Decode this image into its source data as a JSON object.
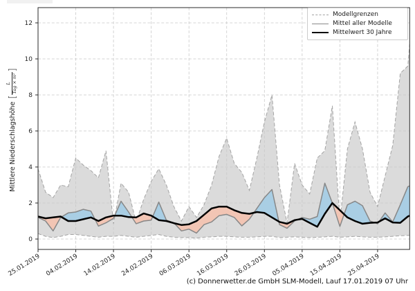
{
  "caption": "(c) Donnerwetter.de GmbH SLM-Modell, Lauf 17.01.2019 07 Uhr",
  "legend": {
    "items": [
      {
        "label": "Modellgrenzen",
        "style": "dashed-gray"
      },
      {
        "label": "Mittel aller Modelle",
        "style": "solid-gray"
      },
      {
        "label": "Mittelwert 30 Jahre",
        "style": "solid-black-thick"
      }
    ]
  },
  "ylabel": {
    "text": "Mittlere Niederschlagshöhe",
    "bracket_open": "[",
    "fraction": {
      "numerator": "L",
      "denominator": "Tag × m²"
    },
    "bracket_close": "]"
  },
  "colors": {
    "envelope_fill": "#dbdbdb",
    "envelope_edge": "#a3a3a3",
    "model_mean_line": "#878787",
    "climate_line": "#000000",
    "above_normal_fill": "#a9cee4",
    "below_normal_fill": "#f2c5b4",
    "grid": "#c9c9c9",
    "spine": "#2a2a2a"
  },
  "chart_data": {
    "type": "line",
    "title": "",
    "xlabel": "",
    "ylabel": "Mittlere Niederschlagshöhe [L/(Tag × m²)]",
    "x_unit": "days since 25.01.2019",
    "xlim": [
      0,
      98.5
    ],
    "ylim": [
      -0.55,
      12.85
    ],
    "grid": true,
    "legend_position": "upper right",
    "y_ticks": [
      0,
      2,
      4,
      6,
      8,
      10,
      12
    ],
    "x_ticks": [
      {
        "day": 0,
        "label": "25.01.2019"
      },
      {
        "day": 10,
        "label": "04.02.2019"
      },
      {
        "day": 20,
        "label": "14.02.2019"
      },
      {
        "day": 30,
        "label": "24.02.2019"
      },
      {
        "day": 40,
        "label": "06.03.2019"
      },
      {
        "day": 50,
        "label": "16.03.2019"
      },
      {
        "day": 60,
        "label": "26.03.2019"
      },
      {
        "day": 70,
        "label": "05.04.2019"
      },
      {
        "day": 80,
        "label": "15.04.2019"
      },
      {
        "day": 90,
        "label": "25.04.2019"
      }
    ],
    "days": [
      0,
      2,
      4,
      6,
      8,
      10,
      12,
      14,
      16,
      18,
      20,
      22,
      24,
      26,
      28,
      30,
      32,
      34,
      36,
      38,
      40,
      42,
      44,
      46,
      48,
      50,
      52,
      54,
      56,
      58,
      60,
      62,
      64,
      66,
      68,
      70,
      72,
      74,
      76,
      78,
      80,
      82,
      84,
      86,
      88,
      90,
      92,
      94,
      96,
      98,
      98.5
    ],
    "series": [
      {
        "name": "Modellgrenzen (obere Grenze)",
        "values": [
          3.9,
          2.6,
          2.3,
          3.0,
          2.9,
          4.5,
          4.1,
          3.8,
          3.4,
          4.9,
          0.85,
          3.1,
          2.6,
          0.95,
          2.2,
          3.2,
          3.9,
          3.0,
          1.8,
          1.0,
          1.8,
          1.2,
          1.9,
          3.0,
          4.6,
          5.6,
          4.2,
          3.7,
          2.7,
          4.5,
          6.5,
          8.0,
          3.0,
          0.9,
          4.2,
          3.0,
          2.5,
          4.5,
          4.9,
          7.4,
          0.95,
          5.0,
          6.5,
          5.0,
          2.6,
          1.8,
          3.5,
          5.2,
          9.2,
          9.6,
          10.8
        ]
      },
      {
        "name": "Modellgrenzen (untere Grenze)",
        "values": [
          0.3,
          0.15,
          0.08,
          0.15,
          0.25,
          0.25,
          0.2,
          0.15,
          0.1,
          0.15,
          0.15,
          0.2,
          0.15,
          0.1,
          0.15,
          0.2,
          0.25,
          0.15,
          0.1,
          0.08,
          0.08,
          0.05,
          0.1,
          0.12,
          0.15,
          0.15,
          0.12,
          0.1,
          0.1,
          0.12,
          0.15,
          0.15,
          0.08,
          0.1,
          0.12,
          0.1,
          0.08,
          0.1,
          0.12,
          0.15,
          0.1,
          0.12,
          0.15,
          0.12,
          0.1,
          0.1,
          0.12,
          0.15,
          0.18,
          0.2,
          0.2
        ]
      },
      {
        "name": "Mittel aller Modelle",
        "values": [
          1.2,
          1.0,
          0.45,
          1.2,
          1.45,
          1.5,
          1.65,
          1.55,
          0.72,
          0.9,
          1.15,
          2.1,
          1.5,
          0.85,
          1.0,
          1.05,
          2.05,
          1.05,
          0.9,
          0.45,
          0.55,
          0.33,
          0.8,
          0.95,
          1.3,
          1.37,
          1.2,
          0.73,
          1.1,
          1.7,
          2.3,
          2.75,
          0.8,
          0.6,
          1.0,
          1.2,
          1.1,
          1.25,
          3.1,
          2.0,
          0.7,
          1.9,
          2.1,
          1.85,
          1.0,
          0.85,
          1.45,
          0.95,
          1.9,
          2.9,
          2.95
        ]
      },
      {
        "name": "Mittelwert 30 Jahre",
        "values": [
          1.25,
          1.15,
          1.2,
          1.25,
          1.0,
          1.0,
          1.1,
          1.2,
          1.0,
          1.2,
          1.3,
          1.3,
          1.22,
          1.2,
          1.42,
          1.3,
          1.05,
          1.0,
          0.88,
          0.78,
          0.82,
          1.0,
          1.35,
          1.7,
          1.8,
          1.8,
          1.6,
          1.45,
          1.4,
          1.5,
          1.45,
          1.2,
          0.95,
          0.85,
          1.05,
          1.12,
          0.9,
          0.68,
          1.4,
          2.0,
          1.6,
          1.2,
          1.0,
          0.85,
          0.9,
          0.92,
          1.15,
          0.92,
          0.9,
          1.25,
          1.3
        ]
      }
    ],
    "fills": [
      {
        "between": [
          "Modellgrenzen (obere Grenze)",
          "Modellgrenzen (untere Grenze)"
        ],
        "color": "#dbdbdb"
      },
      {
        "between": [
          "Mittel aller Modelle",
          "Mittelwert 30 Jahre"
        ],
        "above_color": "#a9cee4",
        "below_color": "#f2c5b4"
      }
    ]
  }
}
